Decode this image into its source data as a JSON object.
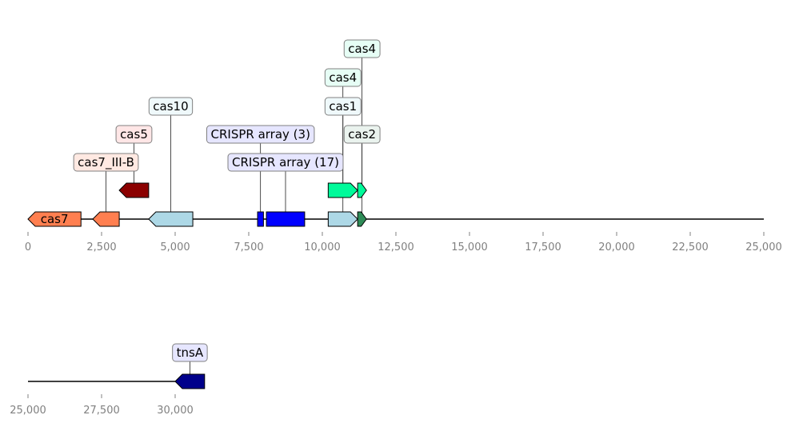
{
  "tracks": [
    {
      "range": [
        0,
        25000
      ],
      "ticks": [
        "0",
        "2,500",
        "5,000",
        "7,500",
        "10,000",
        "12,500",
        "15,000",
        "17,500",
        "20,000",
        "22,500",
        "25,000"
      ],
      "features": [
        {
          "id": "cas7",
          "start": 0,
          "end": 1800,
          "strand": -1,
          "color": "#ff7f50",
          "level": 0,
          "label": "cas7",
          "label_inline": true,
          "label_pos": 900
        },
        {
          "id": "cas7-iii-b",
          "start": 2200,
          "end": 3100,
          "strand": -1,
          "color": "#ff7f50",
          "level": 0,
          "label": "cas7_III-B",
          "label_bg": "#ffe9e2",
          "label_row": 0,
          "label_pos": 2650,
          "label_anchor": 2650
        },
        {
          "id": "cas5",
          "start": 3100,
          "end": 4100,
          "strand": -1,
          "color": "#8b0000",
          "level": 1,
          "label": "cas5",
          "label_bg": "#ffe6e6",
          "label_row": 1,
          "label_pos": 3600,
          "label_anchor": 3600
        },
        {
          "id": "cas10",
          "start": 4100,
          "end": 5600,
          "strand": -1,
          "color": "#add8e6",
          "level": 0,
          "label": "cas10",
          "label_bg": "#eff9fb",
          "label_row": 2,
          "label_pos": 4850,
          "label_anchor": 4850
        },
        {
          "id": "crispr-array-3",
          "start": 7800,
          "end": 8000,
          "strand": 0,
          "color": "#0000ff",
          "level": 0,
          "label": "CRISPR array (3)",
          "label_bg": "#e6e6ff",
          "label_row": 1,
          "label_pos": 7900,
          "label_anchor": 7900
        },
        {
          "id": "crispr-array-17",
          "start": 8100,
          "end": 9400,
          "strand": 0,
          "color": "#0000ff",
          "level": 0,
          "label": "CRISPR array (17)",
          "label_bg": "#e6e6ff",
          "label_row": 0,
          "label_pos": 8750,
          "label_anchor": 8750
        },
        {
          "id": "cas1",
          "start": 10200,
          "end": 11200,
          "strand": 1,
          "color": "#add8e6",
          "level": 0,
          "label": "cas1",
          "label_bg": "#eff9fb",
          "label_row": 2,
          "label_pos": 10700,
          "label_anchor": 10700
        },
        {
          "id": "cas4-a",
          "start": 10200,
          "end": 11200,
          "strand": 1,
          "color": "#00fa9a",
          "level": 1,
          "label": "cas4",
          "label_bg": "#e6fef5",
          "label_row": 3,
          "label_pos": 10700,
          "label_anchor": 10700
        },
        {
          "id": "cas4-b",
          "start": 11200,
          "end": 11500,
          "strand": 1,
          "color": "#00fa9a",
          "level": 1,
          "label": "cas4",
          "label_bg": "#e6fef5",
          "label_row": 4,
          "label_pos": 11350,
          "label_anchor": 11350
        },
        {
          "id": "cas2",
          "start": 11200,
          "end": 11500,
          "strand": 1,
          "color": "#2e8b57",
          "level": 0,
          "label": "cas2",
          "label_bg": "#eaf3ee",
          "label_row": 1,
          "label_pos": 11350,
          "label_anchor": 11350
        }
      ]
    },
    {
      "range": [
        25000,
        30000
      ],
      "ticks": [
        "25,000",
        "27,500",
        "30,000"
      ],
      "features": [
        {
          "id": "tnsa",
          "start": 30000,
          "end": 31000,
          "strand": -1,
          "color": "#00008b",
          "level": 0,
          "label": "tnsA",
          "label_bg": "#e6e6ff",
          "label_row": 0,
          "label_pos": 30500,
          "label_anchor": 30500
        }
      ]
    }
  ]
}
